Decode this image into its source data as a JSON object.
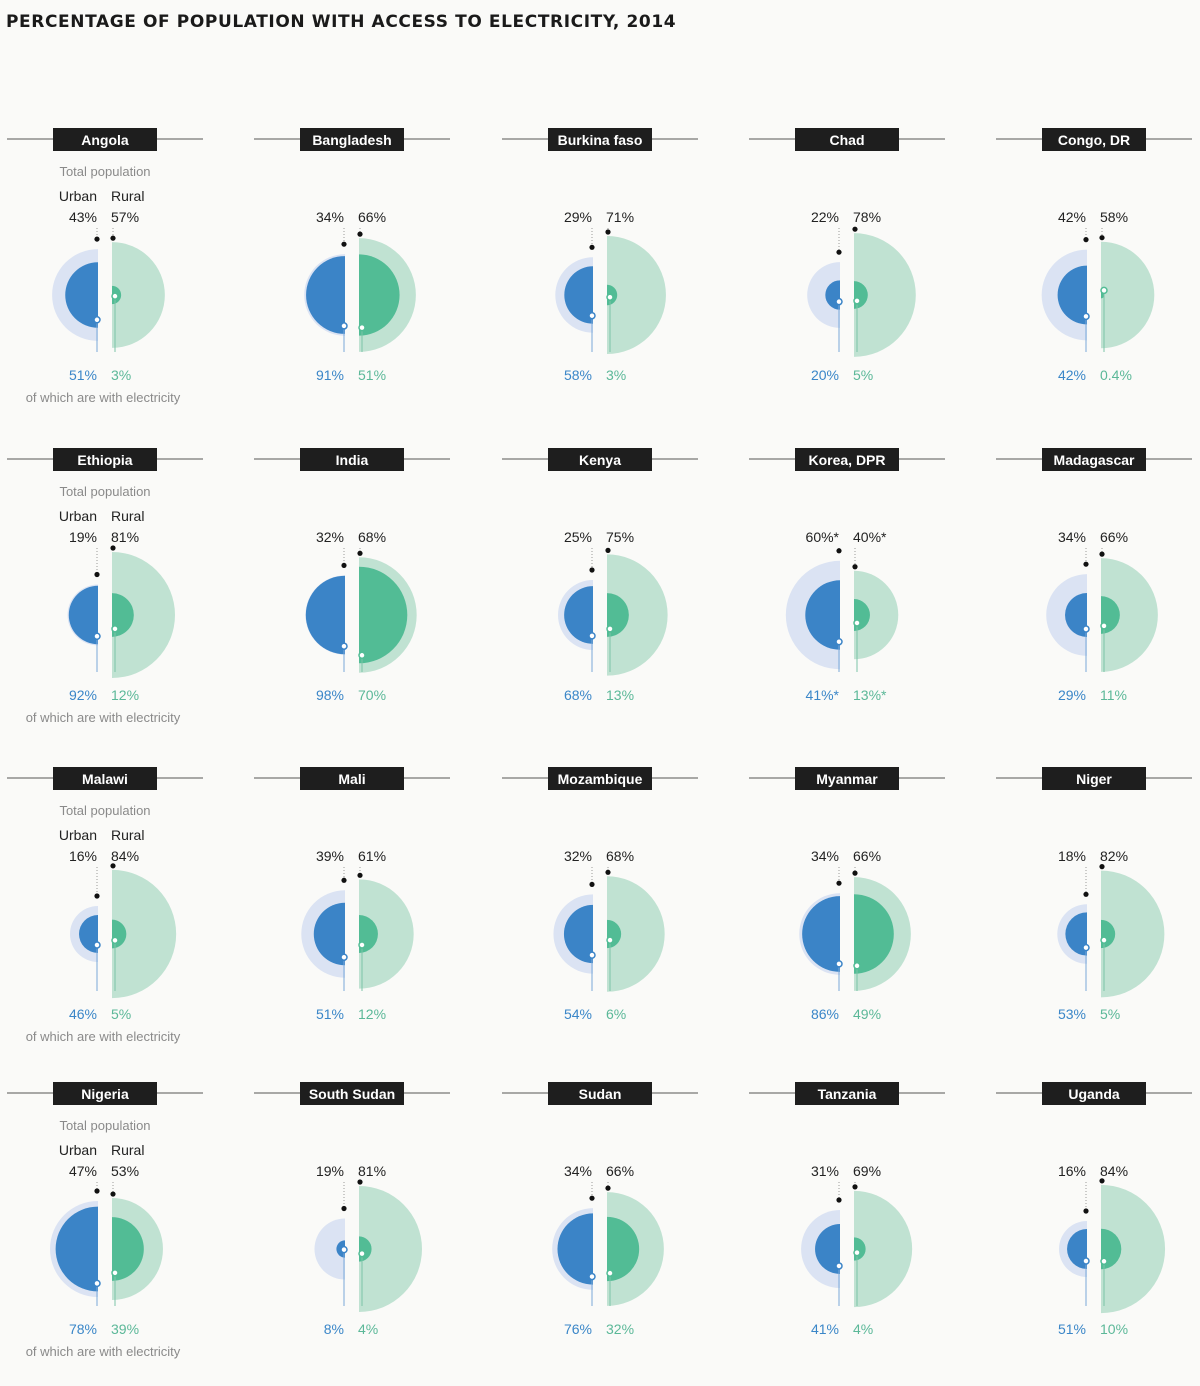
{
  "title": "PERCENTAGE OF POPULATION WITH ACCESS TO ELECTRICITY, 2014",
  "colors": {
    "urban_light": "#dbe3f3",
    "urban_dark": "#3b84c7",
    "rural_light": "#c0e2d2",
    "rural_dark": "#52bc95",
    "urban_label": "#3a86c8",
    "rural_label": "#5bb898",
    "header_bg": "#1e1e1e",
    "text": "#222222",
    "gray": "#8a8a8a"
  },
  "chart_data": {
    "type": "semicircle-pairs",
    "legend": {
      "total_population": "Total population",
      "urban": "Urban",
      "rural": "Rural",
      "with_electricity": "of which are with electricity"
    },
    "countries": [
      {
        "name": "Angola",
        "urban_pop": 43,
        "rural_pop": 57,
        "urban_elec": 51,
        "rural_elec": 3,
        "urban_pop_label": "43%",
        "rural_pop_label": "57%",
        "urban_elec_label": "51%",
        "rural_elec_label": "3%"
      },
      {
        "name": "Bangladesh",
        "urban_pop": 34,
        "rural_pop": 66,
        "urban_elec": 91,
        "rural_elec": 51,
        "urban_pop_label": "34%",
        "rural_pop_label": "66%",
        "urban_elec_label": "91%",
        "rural_elec_label": "51%"
      },
      {
        "name": "Burkina faso",
        "urban_pop": 29,
        "rural_pop": 71,
        "urban_elec": 58,
        "rural_elec": 3,
        "urban_pop_label": "29%",
        "rural_pop_label": "71%",
        "urban_elec_label": "58%",
        "rural_elec_label": "3%"
      },
      {
        "name": "Chad",
        "urban_pop": 22,
        "rural_pop": 78,
        "urban_elec": 20,
        "rural_elec": 5,
        "urban_pop_label": "22%",
        "rural_pop_label": "78%",
        "urban_elec_label": "20%",
        "rural_elec_label": "5%"
      },
      {
        "name": "Congo, DR",
        "urban_pop": 42,
        "rural_pop": 58,
        "urban_elec": 42,
        "rural_elec": 0.4,
        "urban_pop_label": "42%",
        "rural_pop_label": "58%",
        "urban_elec_label": "42%",
        "rural_elec_label": "0.4%"
      },
      {
        "name": "Ethiopia",
        "urban_pop": 19,
        "rural_pop": 81,
        "urban_elec": 92,
        "rural_elec": 12,
        "urban_pop_label": "19%",
        "rural_pop_label": "81%",
        "urban_elec_label": "92%",
        "rural_elec_label": "12%"
      },
      {
        "name": "India",
        "urban_pop": 32,
        "rural_pop": 68,
        "urban_elec": 98,
        "rural_elec": 70,
        "urban_pop_label": "32%",
        "rural_pop_label": "68%",
        "urban_elec_label": "98%",
        "rural_elec_label": "70%"
      },
      {
        "name": "Kenya",
        "urban_pop": 25,
        "rural_pop": 75,
        "urban_elec": 68,
        "rural_elec": 13,
        "urban_pop_label": "25%",
        "rural_pop_label": "75%",
        "urban_elec_label": "68%",
        "rural_elec_label": "13%"
      },
      {
        "name": "Korea, DPR",
        "urban_pop": 60,
        "rural_pop": 40,
        "urban_elec": 41,
        "rural_elec": 13,
        "urban_pop_label": "60%*",
        "rural_pop_label": "40%*",
        "urban_elec_label": "41%*",
        "rural_elec_label": "13%*"
      },
      {
        "name": "Madagascar",
        "urban_pop": 34,
        "rural_pop": 66,
        "urban_elec": 29,
        "rural_elec": 11,
        "urban_pop_label": "34%",
        "rural_pop_label": "66%",
        "urban_elec_label": "29%",
        "rural_elec_label": "11%"
      },
      {
        "name": "Malawi",
        "urban_pop": 16,
        "rural_pop": 84,
        "urban_elec": 46,
        "rural_elec": 5,
        "urban_pop_label": "16%",
        "rural_pop_label": "84%",
        "urban_elec_label": "46%",
        "rural_elec_label": "5%"
      },
      {
        "name": "Mali",
        "urban_pop": 39,
        "rural_pop": 61,
        "urban_elec": 51,
        "rural_elec": 12,
        "urban_pop_label": "39%",
        "rural_pop_label": "61%",
        "urban_elec_label": "51%",
        "rural_elec_label": "12%"
      },
      {
        "name": "Mozambique",
        "urban_pop": 32,
        "rural_pop": 68,
        "urban_elec": 54,
        "rural_elec": 6,
        "urban_pop_label": "32%",
        "rural_pop_label": "68%",
        "urban_elec_label": "54%",
        "rural_elec_label": "6%"
      },
      {
        "name": "Myanmar",
        "urban_pop": 34,
        "rural_pop": 66,
        "urban_elec": 86,
        "rural_elec": 49,
        "urban_pop_label": "34%",
        "rural_pop_label": "66%",
        "urban_elec_label": "86%",
        "rural_elec_label": "49%"
      },
      {
        "name": "Niger",
        "urban_pop": 18,
        "rural_pop": 82,
        "urban_elec": 53,
        "rural_elec": 5,
        "urban_pop_label": "18%",
        "rural_pop_label": "82%",
        "urban_elec_label": "53%",
        "rural_elec_label": "5%"
      },
      {
        "name": "Nigeria",
        "urban_pop": 47,
        "rural_pop": 53,
        "urban_elec": 78,
        "rural_elec": 39,
        "urban_pop_label": "47%",
        "rural_pop_label": "53%",
        "urban_elec_label": "78%",
        "rural_elec_label": "39%"
      },
      {
        "name": "South Sudan",
        "urban_pop": 19,
        "rural_pop": 81,
        "urban_elec": 8,
        "rural_elec": 4,
        "urban_pop_label": "19%",
        "rural_pop_label": "81%",
        "urban_elec_label": "8%",
        "rural_elec_label": "4%"
      },
      {
        "name": "Sudan",
        "urban_pop": 34,
        "rural_pop": 66,
        "urban_elec": 76,
        "rural_elec": 32,
        "urban_pop_label": "34%",
        "rural_pop_label": "66%",
        "urban_elec_label": "76%",
        "rural_elec_label": "32%"
      },
      {
        "name": "Tanzania",
        "urban_pop": 31,
        "rural_pop": 69,
        "urban_elec": 41,
        "rural_elec": 4,
        "urban_pop_label": "31%",
        "rural_pop_label": "69%",
        "urban_elec_label": "41%",
        "rural_elec_label": "4%"
      },
      {
        "name": "Uganda",
        "urban_pop": 16,
        "rural_pop": 84,
        "urban_elec": 51,
        "rural_elec": 10,
        "urban_pop_label": "16%",
        "rural_pop_label": "84%",
        "urban_elec_label": "51%",
        "rural_elec_label": "10%"
      }
    ]
  }
}
